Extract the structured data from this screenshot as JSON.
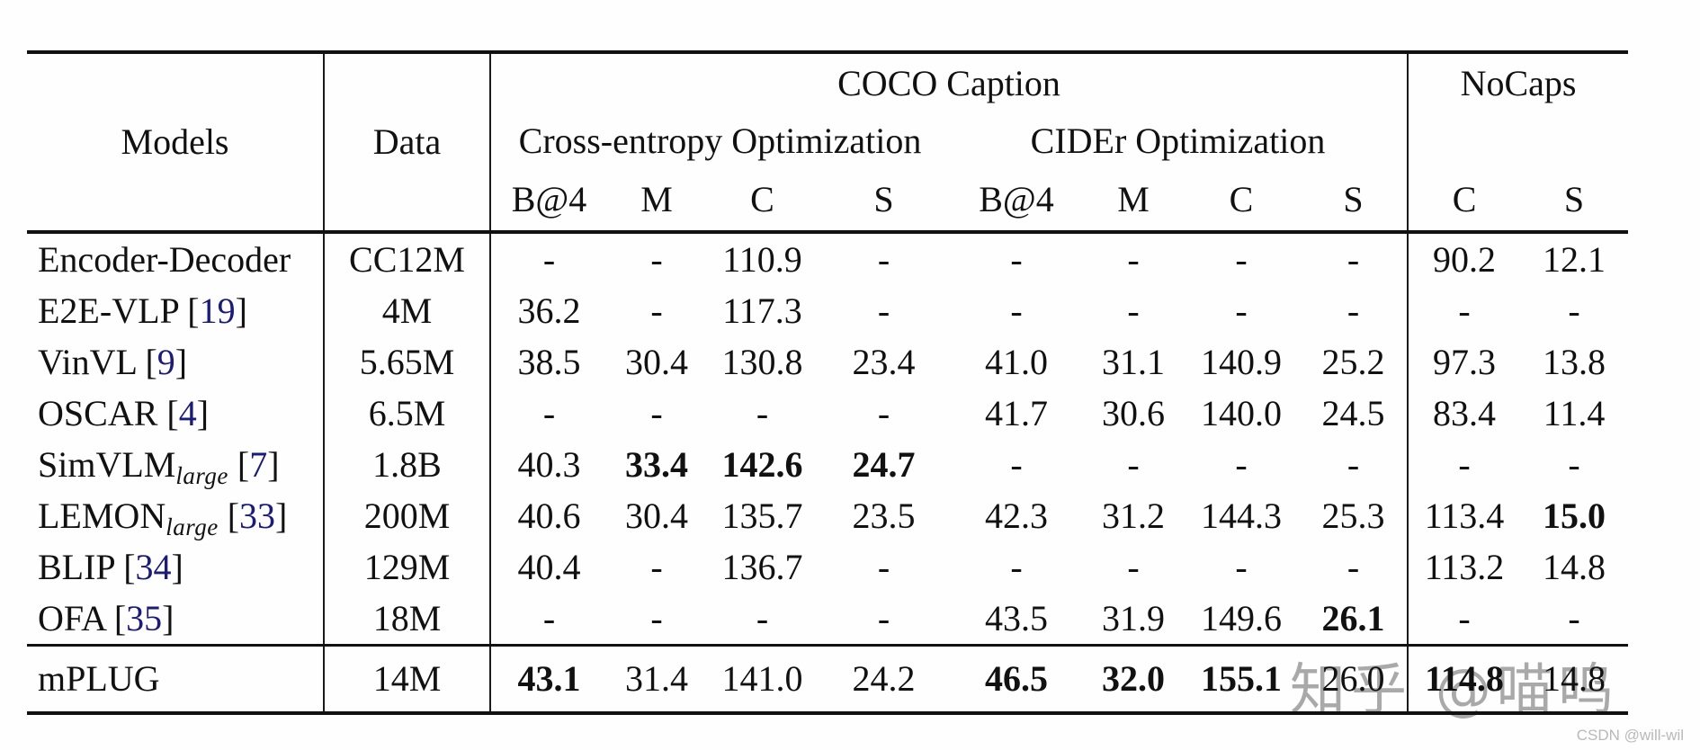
{
  "table": {
    "header": {
      "models_label": "Models",
      "data_label": "Data",
      "coco_caption_label": "COCO Caption",
      "nocaps_label": "NoCaps",
      "xe_group_label": "Cross-entropy Optimization",
      "cider_group_label": "CIDEr Optimization",
      "metric_headers": [
        "B@4",
        "M",
        "C",
        "S",
        "B@4",
        "M",
        "C",
        "S",
        "C",
        "S"
      ]
    },
    "rows": [
      {
        "model": "Encoder-Decoder",
        "model_sub": "",
        "cite": "",
        "data": "CC12M",
        "cells": [
          "-",
          "-",
          "110.9",
          "-",
          "-",
          "-",
          "-",
          "-",
          "90.2",
          "12.1"
        ],
        "bold": [
          false,
          false,
          false,
          false,
          false,
          false,
          false,
          false,
          false,
          false
        ],
        "final": false
      },
      {
        "model": "E2E-VLP",
        "model_sub": "",
        "cite": "19",
        "data": "4M",
        "cells": [
          "36.2",
          "-",
          "117.3",
          "-",
          "-",
          "-",
          "-",
          "-",
          "-",
          "-"
        ],
        "bold": [
          false,
          false,
          false,
          false,
          false,
          false,
          false,
          false,
          false,
          false
        ],
        "final": false
      },
      {
        "model": "VinVL",
        "model_sub": "",
        "cite": "9",
        "data": "5.65M",
        "cells": [
          "38.5",
          "30.4",
          "130.8",
          "23.4",
          "41.0",
          "31.1",
          "140.9",
          "25.2",
          "97.3",
          "13.8"
        ],
        "bold": [
          false,
          false,
          false,
          false,
          false,
          false,
          false,
          false,
          false,
          false
        ],
        "final": false
      },
      {
        "model": "OSCAR",
        "model_sub": "",
        "cite": "4",
        "data": "6.5M",
        "cells": [
          "-",
          "-",
          "-",
          "-",
          "41.7",
          "30.6",
          "140.0",
          "24.5",
          "83.4",
          "11.4"
        ],
        "bold": [
          false,
          false,
          false,
          false,
          false,
          false,
          false,
          false,
          false,
          false
        ],
        "final": false
      },
      {
        "model": "SimVLM",
        "model_sub": "large",
        "cite": "7",
        "data": "1.8B",
        "cells": [
          "40.3",
          "33.4",
          "142.6",
          "24.7",
          "-",
          "-",
          "-",
          "-",
          "-",
          "-"
        ],
        "bold": [
          false,
          true,
          true,
          true,
          false,
          false,
          false,
          false,
          false,
          false
        ],
        "final": false
      },
      {
        "model": "LEMON",
        "model_sub": "large",
        "cite": "33",
        "data": "200M",
        "cells": [
          "40.6",
          "30.4",
          "135.7",
          "23.5",
          "42.3",
          "31.2",
          "144.3",
          "25.3",
          "113.4",
          "15.0"
        ],
        "bold": [
          false,
          false,
          false,
          false,
          false,
          false,
          false,
          false,
          false,
          true
        ],
        "final": false
      },
      {
        "model": "BLIP",
        "model_sub": "",
        "cite": "34",
        "data": "129M",
        "cells": [
          "40.4",
          "-",
          "136.7",
          "-",
          "-",
          "-",
          "-",
          "-",
          "113.2",
          "14.8"
        ],
        "bold": [
          false,
          false,
          false,
          false,
          false,
          false,
          false,
          false,
          false,
          false
        ],
        "final": false
      },
      {
        "model": "OFA",
        "model_sub": "",
        "cite": "35",
        "data": "18M",
        "cells": [
          "-",
          "-",
          "-",
          "-",
          "43.5",
          "31.9",
          "149.6",
          "26.1",
          "-",
          "-"
        ],
        "bold": [
          false,
          false,
          false,
          false,
          false,
          false,
          false,
          true,
          false,
          false
        ],
        "final": false
      },
      {
        "model": "mPLUG",
        "model_sub": "",
        "cite": "",
        "data": "14M",
        "cells": [
          "43.1",
          "31.4",
          "141.0",
          "24.2",
          "46.5",
          "32.0",
          "155.1",
          "26.0",
          "114.8",
          "14.8"
        ],
        "bold": [
          true,
          false,
          false,
          false,
          true,
          true,
          true,
          false,
          true,
          false
        ],
        "final": true
      }
    ]
  },
  "colors": {
    "citation": "#1b1b78",
    "text": "#111111",
    "watermark_big": "#a9a9a9",
    "watermark_small": "#b9b9b9"
  },
  "watermarks": {
    "big": "知乎 @喵呜",
    "small": "CSDN @will-wil"
  }
}
